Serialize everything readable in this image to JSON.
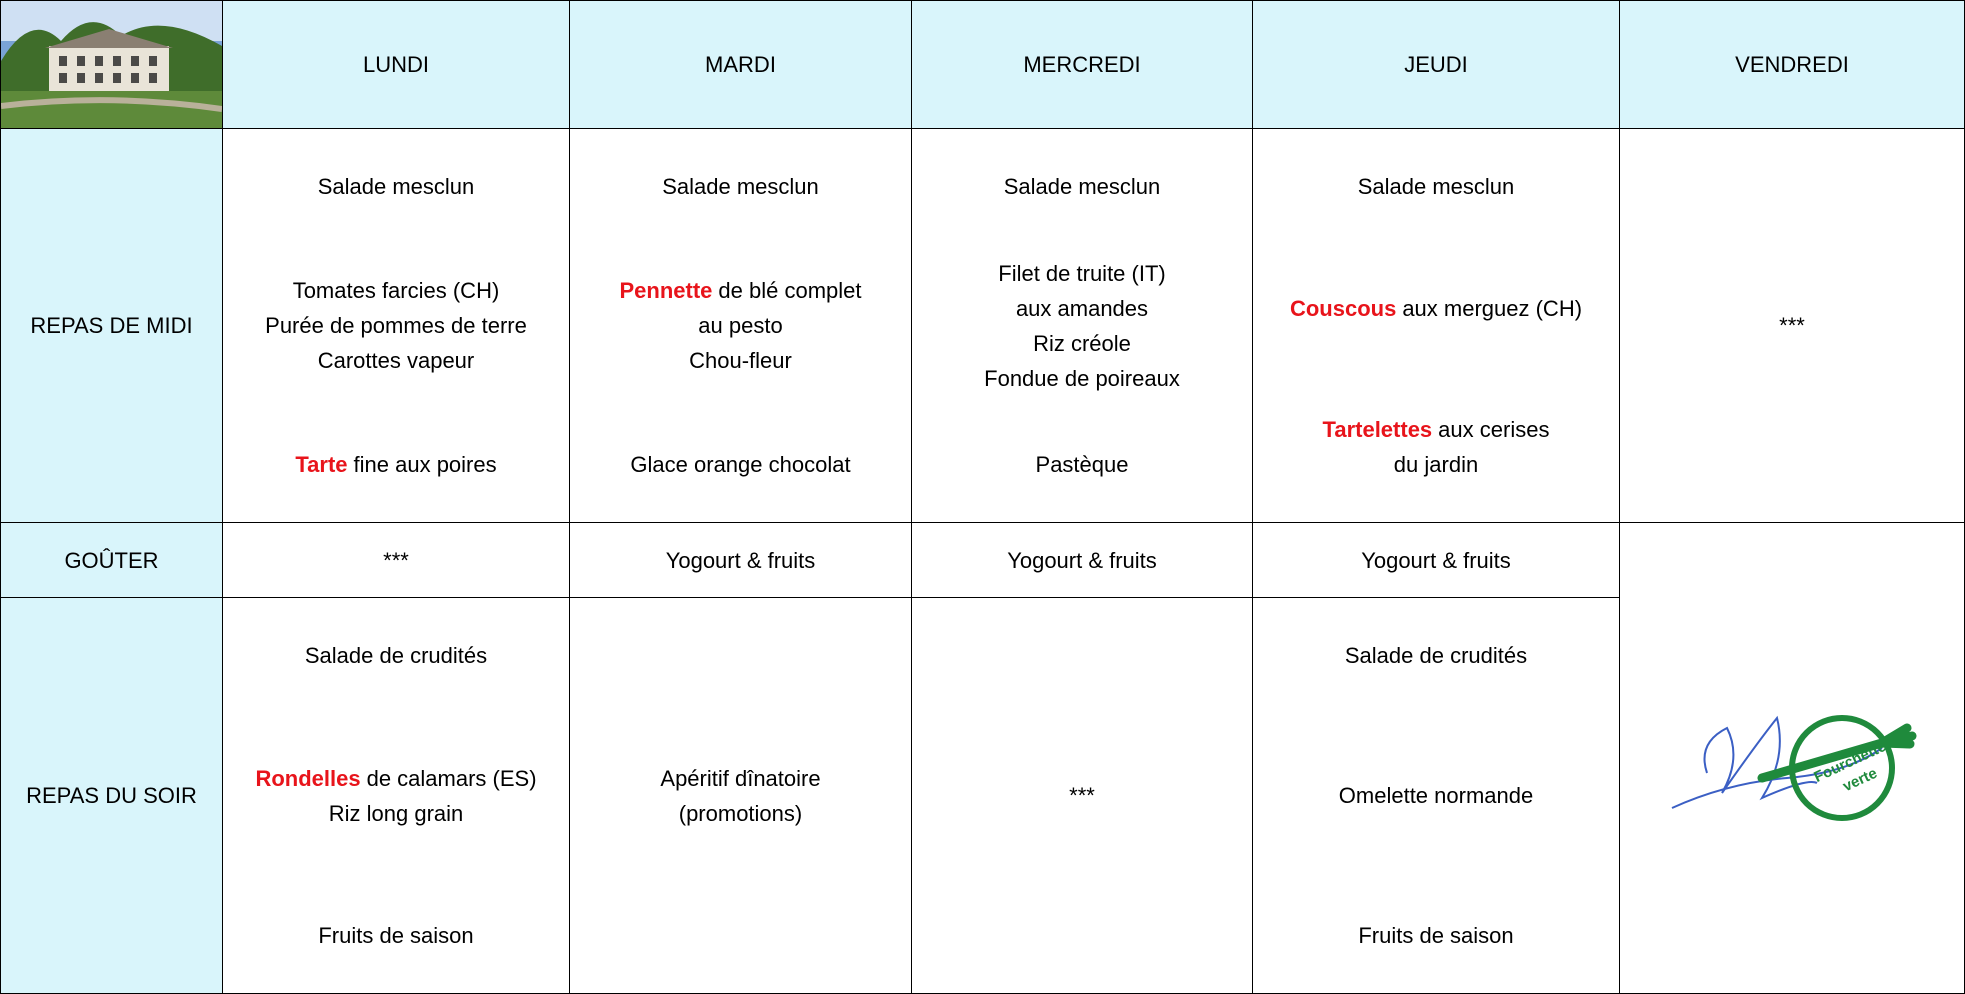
{
  "header": {
    "days": [
      "LUNDI",
      "MARDI",
      "MERCREDI",
      "JEUDI",
      "VENDREDI"
    ]
  },
  "rows": [
    {
      "label": "REPAS DE MIDI",
      "cells": [
        [
          [
            "Salade mesclun"
          ],
          [
            "Tomates farcies (CH)",
            "Purée de pommes de terre",
            "Carottes vapeur"
          ],
          [
            {
              "highlight": "Tarte",
              "text": "fine aux poires"
            }
          ]
        ],
        [
          [
            "Salade mesclun"
          ],
          [
            {
              "highlight": "Pennette",
              "text": "de blé complet"
            },
            "au pesto",
            "Chou-fleur"
          ],
          [
            "Glace orange chocolat"
          ]
        ],
        [
          [
            "Salade mesclun"
          ],
          [
            "Filet de truite (IT)",
            "aux amandes",
            "Riz créole",
            "Fondue de poireaux"
          ],
          [
            "Pastèque"
          ]
        ],
        [
          [
            "Salade mesclun"
          ],
          [
            {
              "highlight": "Couscous",
              "text": "aux merguez (CH)"
            }
          ],
          [
            {
              "highlight": "Tartelettes",
              "text": "aux cerises"
            },
            "du jardin"
          ]
        ],
        [
          [
            "***"
          ]
        ]
      ]
    },
    {
      "label": "GOÛTER",
      "cells": [
        [
          [
            "***"
          ]
        ],
        [
          [
            "Yogourt & fruits"
          ]
        ],
        [
          [
            "Yogourt & fruits"
          ]
        ],
        [
          [
            "Yogourt & fruits"
          ]
        ]
      ]
    },
    {
      "label": "REPAS DU SOIR",
      "cells": [
        [
          [
            "Salade de crudités"
          ],
          [
            {
              "highlight": "Rondelles",
              "text": "de calamars (ES)"
            },
            "Riz long grain"
          ],
          [
            "Fruits de saison"
          ]
        ],
        [
          [
            "Apéritif dînatoire",
            "(promotions)"
          ]
        ],
        [
          [
            "***"
          ]
        ],
        [
          [
            "Salade de crudités"
          ],
          [
            "Omelette normande"
          ],
          [
            "Fruits de saison"
          ]
        ]
      ]
    }
  ],
  "logo": {
    "text": [
      "Fourchette",
      "verte"
    ]
  }
}
